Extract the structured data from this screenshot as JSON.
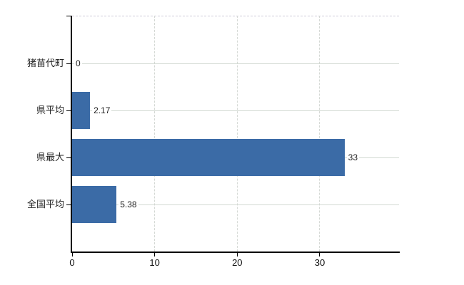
{
  "chart_data": {
    "type": "bar",
    "orientation": "horizontal",
    "title": "",
    "xlabel": "",
    "ylabel": "",
    "categories": [
      "猪苗代町",
      "県平均",
      "県最大",
      "全国平均"
    ],
    "values": [
      0,
      2.17,
      33,
      5.38
    ],
    "value_labels": [
      "0",
      "2.17",
      "33",
      "5.38"
    ],
    "x_tick_labels": [
      "0",
      "10",
      "20",
      "30"
    ],
    "x_tick_values": [
      0,
      10,
      20,
      30
    ],
    "xlim": [
      0,
      39.6
    ],
    "grid": true,
    "legend": false,
    "colors": {
      "bar": "#3b6ba6",
      "hgrid": "#d2d9d2",
      "vgrid": "#d4d8d4",
      "top_border": "#cfccd8",
      "axis": "#000000",
      "text": "#222222",
      "background": "#ffffff"
    }
  }
}
